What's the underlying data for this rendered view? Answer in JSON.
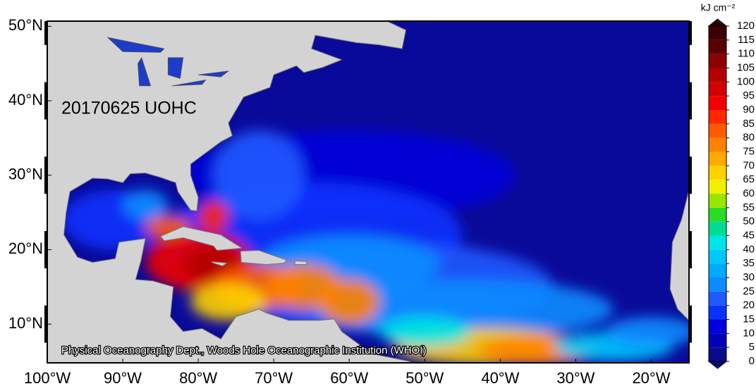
{
  "map": {
    "title": "20170625 UOHC",
    "credit": "Physical Oceanography Dept., Woods Hole Oceanographic Institution (WHOI)",
    "xlim": [
      -100,
      -15
    ],
    "ylim": [
      4.8,
      50.7
    ],
    "xticks": [
      {
        "value": -100,
        "label": "100°W"
      },
      {
        "value": -90,
        "label": "90°W"
      },
      {
        "value": -80,
        "label": "80°W"
      },
      {
        "value": -70,
        "label": "70°W"
      },
      {
        "value": -60,
        "label": "60°W"
      },
      {
        "value": -50,
        "label": "50°W"
      },
      {
        "value": -40,
        "label": "40°W"
      },
      {
        "value": -30,
        "label": "30°W"
      },
      {
        "value": -20,
        "label": "20°W"
      }
    ],
    "yticks": [
      {
        "value": 10,
        "label": "10°N"
      },
      {
        "value": 20,
        "label": "20°N"
      },
      {
        "value": 30,
        "label": "30°N"
      },
      {
        "value": 40,
        "label": "40°N"
      },
      {
        "value": 50,
        "label": "50°N"
      }
    ],
    "colorbar": {
      "unit": "kJ cm⁻²",
      "ticks": [
        0,
        5,
        10,
        15,
        20,
        25,
        30,
        35,
        40,
        45,
        50,
        55,
        60,
        65,
        70,
        75,
        80,
        85,
        90,
        95,
        100,
        105,
        110,
        115,
        120
      ],
      "colors": [
        "#0a0a8c",
        "#0000b4",
        "#0000dc",
        "#0a32ff",
        "#1e5aff",
        "#0a8cff",
        "#00aaff",
        "#00c8ff",
        "#00e6e6",
        "#00dc96",
        "#28dc28",
        "#96e600",
        "#f0f000",
        "#ffd200",
        "#ffaa00",
        "#ff8200",
        "#ff5a00",
        "#ff2800",
        "#f00000",
        "#d20000",
        "#b40000",
        "#8c0000",
        "#5a0000",
        "#3c0000"
      ],
      "under_color": "#08086e",
      "over_color": "#280000"
    }
  }
}
